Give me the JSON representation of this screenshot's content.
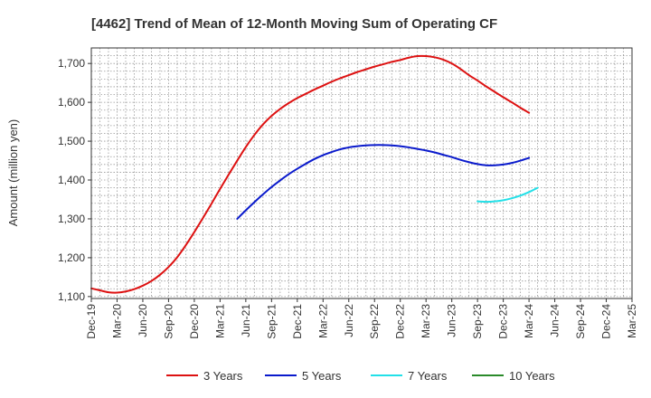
{
  "chart_data": {
    "type": "line",
    "title": "[4462]  Trend of Mean of 12-Month Moving Sum of Operating CF",
    "xlabel": "",
    "ylabel": "Amount (million yen)",
    "ylim": [
      1095,
      1740
    ],
    "yticks": [
      1100,
      1200,
      1300,
      1400,
      1500,
      1600,
      1700
    ],
    "ytick_labels": [
      "1,100",
      "1,200",
      "1,300",
      "1,400",
      "1,500",
      "1,600",
      "1,700"
    ],
    "x_tick_labels": [
      "Dec-19",
      "Mar-20",
      "Jun-20",
      "Sep-20",
      "Dec-20",
      "Mar-21",
      "Jun-21",
      "Sep-21",
      "Dec-21",
      "Mar-22",
      "Jun-22",
      "Sep-22",
      "Dec-22",
      "Mar-23",
      "Jun-23",
      "Sep-23",
      "Dec-23",
      "Mar-24",
      "Jun-24",
      "Sep-24",
      "Dec-24",
      "Mar-25"
    ],
    "grid": true,
    "legend_position": "bottom",
    "series": [
      {
        "name": "3 Years",
        "color": "#dd1111",
        "start_index": 0,
        "values": [
          1121,
          1116,
          1111,
          1110,
          1113,
          1119,
          1128,
          1140,
          1156,
          1176,
          1201,
          1232,
          1266,
          1302,
          1339,
          1377,
          1414,
          1450,
          1485,
          1516,
          1543,
          1565,
          1583,
          1598,
          1611,
          1622,
          1633,
          1643,
          1653,
          1662,
          1670,
          1678,
          1685,
          1692,
          1698,
          1704,
          1709,
          1715,
          1719,
          1719,
          1716,
          1710,
          1700,
          1686,
          1670,
          1656,
          1641,
          1627,
          1613,
          1600,
          1586,
          1573
        ]
      },
      {
        "name": "5 Years",
        "color": "#0a1acc",
        "start_index": 17,
        "values": [
          1300,
          1322,
          1343,
          1363,
          1382,
          1399,
          1415,
          1429,
          1442,
          1454,
          1464,
          1472,
          1479,
          1484,
          1487,
          1489,
          1490,
          1490,
          1489,
          1487,
          1484,
          1480,
          1476,
          1471,
          1465,
          1459,
          1452,
          1446,
          1441,
          1438,
          1438,
          1440,
          1444,
          1450,
          1457
        ]
      },
      {
        "name": "7 Years",
        "color": "#22e0e8",
        "start_index": 45,
        "values": [
          1345,
          1344,
          1345,
          1348,
          1353,
          1360,
          1369,
          1380
        ]
      },
      {
        "name": "10 Years",
        "color": "#2a8a2a",
        "start_index": 0,
        "values": []
      }
    ]
  }
}
